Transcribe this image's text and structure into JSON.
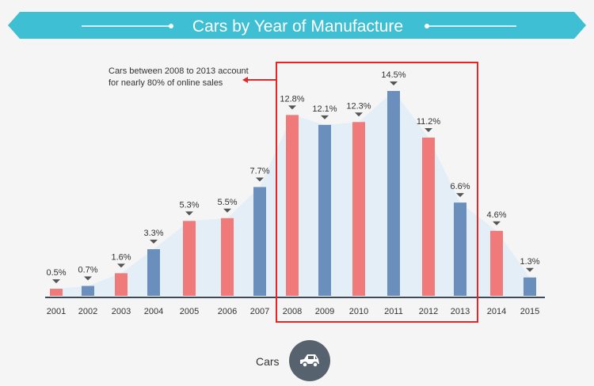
{
  "colors": {
    "banner": "#3fbfd3",
    "red": "#f07a7a",
    "blue": "#6a8fbc",
    "area": "#e4eef7",
    "highlight_box": "#e32727",
    "marker": "#555555"
  },
  "chart_data": {
    "type": "bar",
    "title": "Cars by Year of Manufacture",
    "categories": [
      "2001",
      "2002",
      "2003",
      "2004",
      "2005",
      "2006",
      "2007",
      "2008",
      "2009",
      "2010",
      "2011",
      "2012",
      "2013",
      "2014",
      "2015"
    ],
    "values": [
      0.5,
      0.7,
      1.6,
      3.3,
      5.3,
      5.5,
      7.7,
      12.8,
      12.1,
      12.3,
      14.5,
      11.2,
      6.6,
      4.6,
      1.3
    ],
    "data_labels": [
      "0.5%",
      "0.7%",
      "1.6%",
      "3.3%",
      "5.3%",
      "5.5%",
      "7.7%",
      "12.8%",
      "12.1%",
      "12.3%",
      "14.5%",
      "11.2%",
      "6.6%",
      "4.6%",
      "1.3%"
    ],
    "bar_colors": [
      "red",
      "blue",
      "red",
      "blue",
      "red",
      "red",
      "blue",
      "red",
      "blue",
      "red",
      "blue",
      "red",
      "blue",
      "red",
      "blue"
    ],
    "annotation": {
      "lines": [
        "Cars between 2008 to 2013 account",
        "for nearly 80% of online sales"
      ],
      "highlight_range": [
        "2008",
        "2013"
      ]
    },
    "ylim": [
      0,
      14.5
    ],
    "grid": false
  },
  "legend": {
    "label": "Cars",
    "icon": "car-icon"
  }
}
